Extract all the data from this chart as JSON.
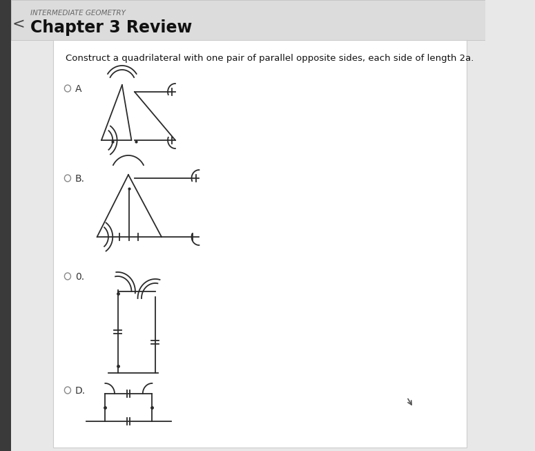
{
  "title_small": "INTERMEDIATE GEOMETRY",
  "title_large": "Chapter 3 Review",
  "question": "Construct a quadrilateral with one pair of parallel opposite sides, each side of length 2a.",
  "bg_color": "#e8e8e8",
  "panel_bg": "#f5f5f5",
  "header_bg": "#e0e0e0",
  "line_color": "#2a2a2a",
  "text_color": "#222222",
  "radio_color": "#777777"
}
